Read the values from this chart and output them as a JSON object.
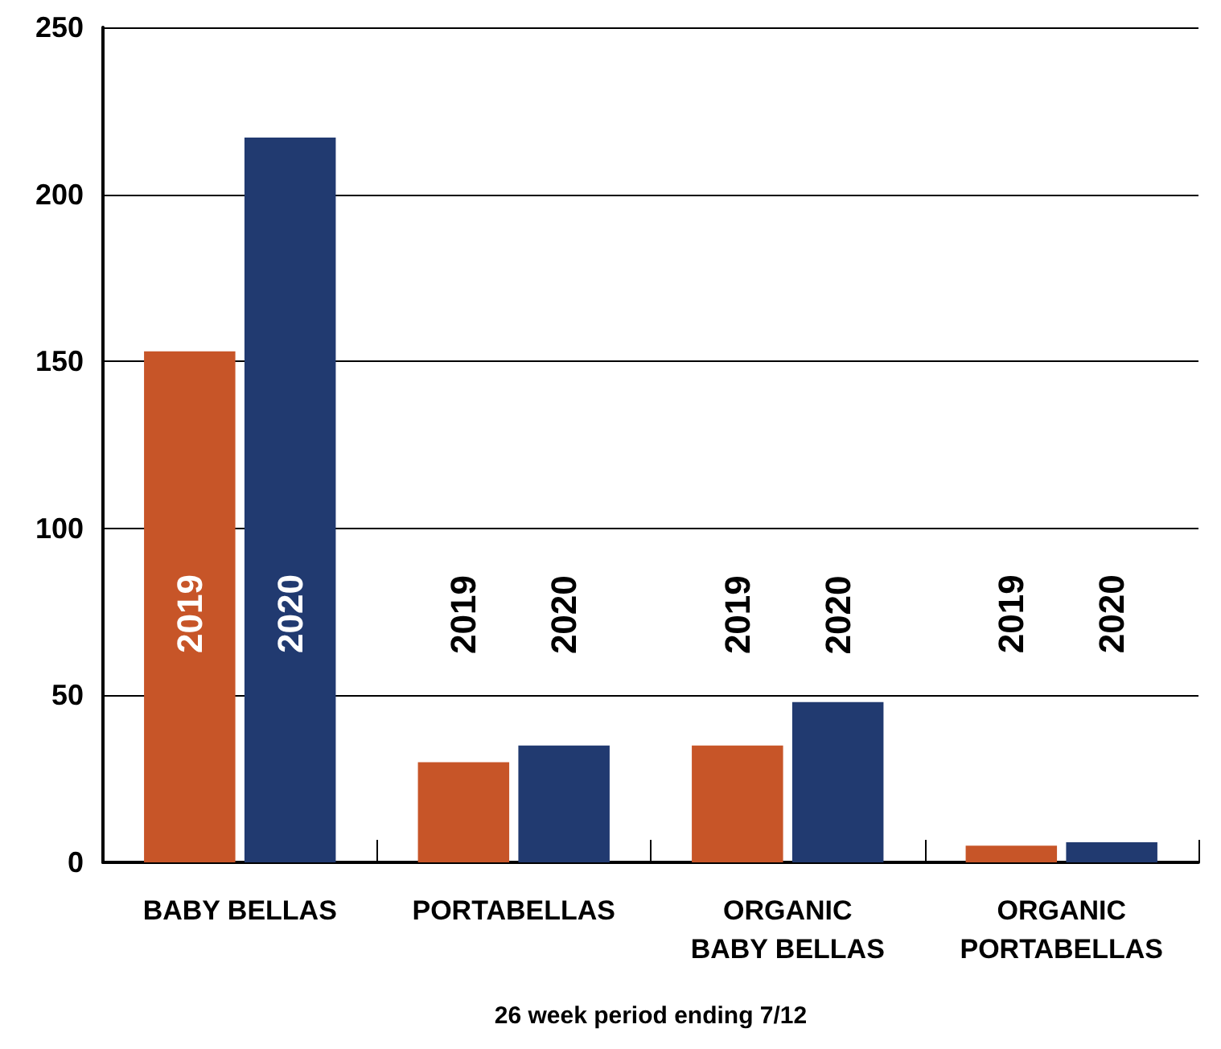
{
  "chart_data": {
    "type": "bar",
    "xlabel": "26 week period ending 7/12",
    "categories": [
      "BABY BELLAS",
      "PORTABELLAS",
      "ORGANIC\nBABY BELLAS",
      "ORGANIC\nPORTABELLAS"
    ],
    "series": [
      {
        "name": "2019",
        "color": "#c75528",
        "values": [
          153,
          30,
          35,
          5
        ]
      },
      {
        "name": "2020",
        "color": "#213a70",
        "values": [
          217,
          35,
          48,
          6
        ]
      }
    ],
    "ylim": [
      0,
      250
    ],
    "yticks": [
      0,
      50,
      100,
      150,
      200,
      250
    ],
    "grid": "y",
    "legend": false
  }
}
